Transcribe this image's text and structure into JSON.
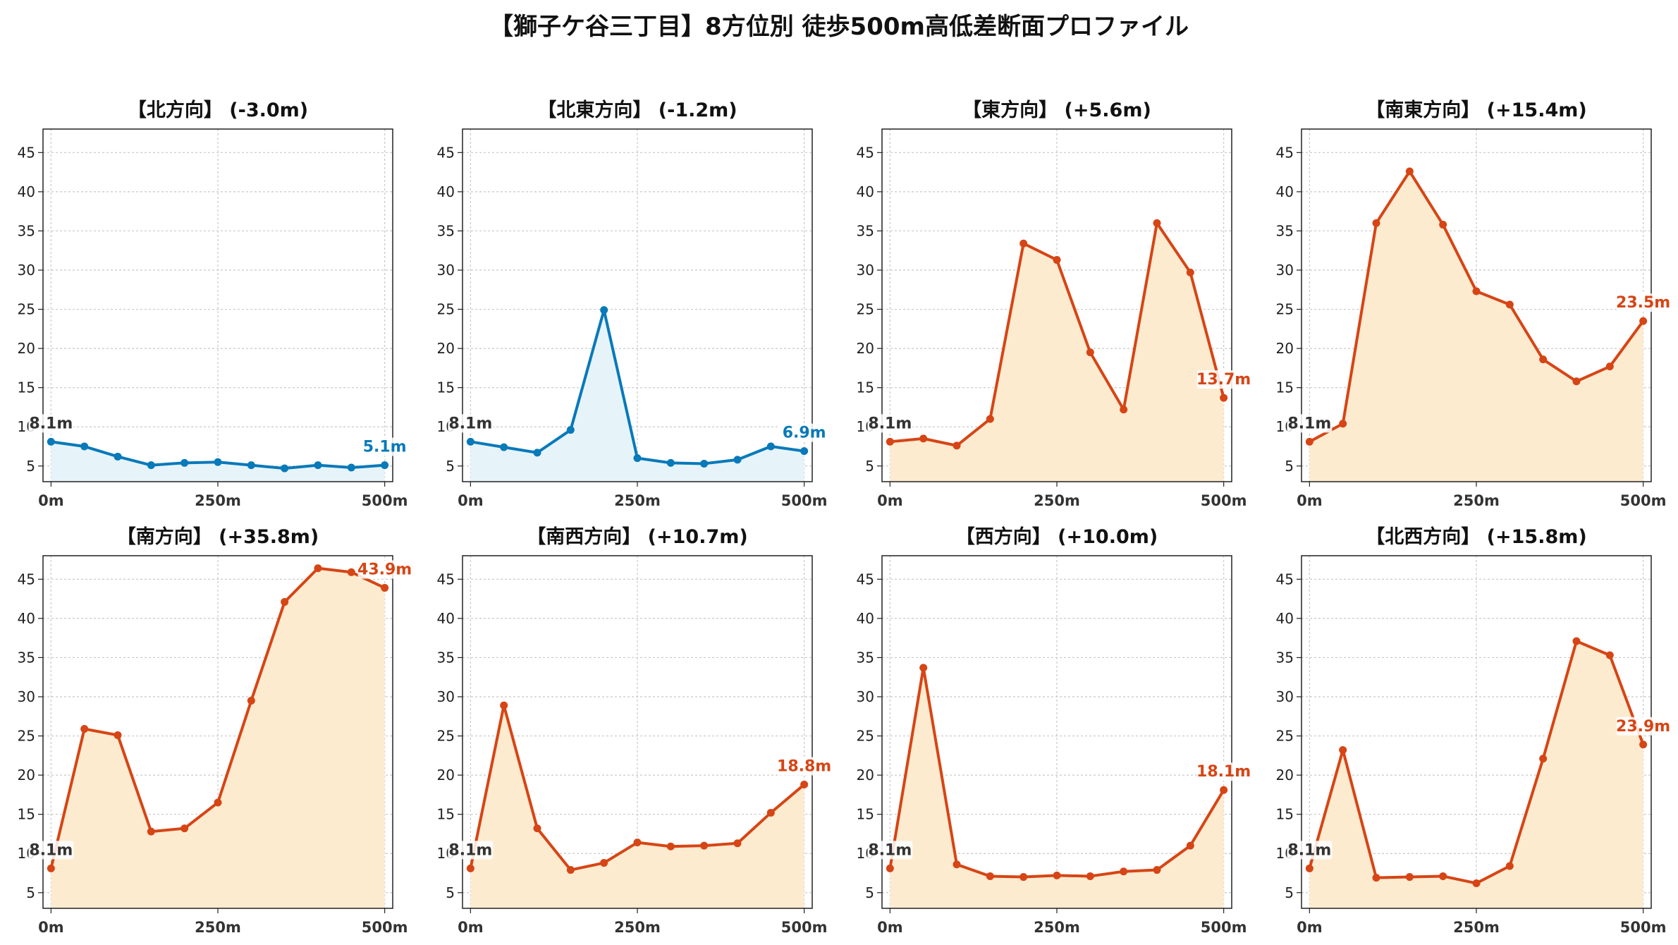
{
  "figure": {
    "title": "【獅子ケ谷三丁目】8方位別 徒歩500m高低差断面プロファイル"
  },
  "colors": {
    "gain": "#D64515",
    "loss": "#0879B9",
    "gain_fill": "#FDEBD0",
    "loss_fill": "#E6F4FA",
    "start_label": "#333333"
  },
  "chart_data": [
    {
      "type": "area",
      "title": "【北方向】 (-3.0m)",
      "xlabel": "",
      "ylabel": "",
      "trend": "loss",
      "x": [
        0,
        50,
        100,
        150,
        200,
        250,
        300,
        350,
        400,
        450,
        500
      ],
      "y": [
        8.1,
        7.5,
        6.2,
        5.1,
        5.4,
        5.5,
        5.1,
        4.7,
        5.1,
        4.8,
        5.1
      ],
      "start_label": "8.1m",
      "end_label": "5.1m",
      "xticks": [
        "0m",
        "250m",
        "500m"
      ],
      "yticks": [
        5,
        10,
        15,
        20,
        25,
        30,
        35,
        40,
        45
      ],
      "ylim": [
        3,
        48
      ],
      "xlim": [
        -12,
        512
      ],
      "grid": true
    },
    {
      "type": "area",
      "title": "【北東方向】 (-1.2m)",
      "xlabel": "",
      "ylabel": "",
      "trend": "loss",
      "x": [
        0,
        50,
        100,
        150,
        200,
        250,
        300,
        350,
        400,
        450,
        500
      ],
      "y": [
        8.1,
        7.4,
        6.7,
        9.6,
        24.9,
        6.0,
        5.4,
        5.3,
        5.8,
        7.5,
        6.9
      ],
      "start_label": "8.1m",
      "end_label": "6.9m",
      "xticks": [
        "0m",
        "250m",
        "500m"
      ],
      "yticks": [
        5,
        10,
        15,
        20,
        25,
        30,
        35,
        40,
        45
      ],
      "ylim": [
        3,
        48
      ],
      "xlim": [
        -12,
        512
      ],
      "grid": true
    },
    {
      "type": "area",
      "title": "【東方向】 (+5.6m)",
      "xlabel": "",
      "ylabel": "",
      "trend": "gain",
      "x": [
        0,
        50,
        100,
        150,
        200,
        250,
        300,
        350,
        400,
        450,
        500
      ],
      "y": [
        8.1,
        8.5,
        7.6,
        11.0,
        33.4,
        31.3,
        19.5,
        12.2,
        36.0,
        29.7,
        13.7
      ],
      "start_label": "8.1m",
      "end_label": "13.7m",
      "xticks": [
        "0m",
        "250m",
        "500m"
      ],
      "yticks": [
        5,
        10,
        15,
        20,
        25,
        30,
        35,
        40,
        45
      ],
      "ylim": [
        3,
        48
      ],
      "xlim": [
        -12,
        512
      ],
      "grid": true
    },
    {
      "type": "area",
      "title": "【南東方向】 (+15.4m)",
      "xlabel": "",
      "ylabel": "",
      "trend": "gain",
      "x": [
        0,
        50,
        100,
        150,
        200,
        250,
        300,
        350,
        400,
        450,
        500
      ],
      "y": [
        8.1,
        10.4,
        36.0,
        42.6,
        35.8,
        27.3,
        25.6,
        18.6,
        15.8,
        17.7,
        23.5
      ],
      "start_label": "8.1m",
      "end_label": "23.5m",
      "xticks": [
        "0m",
        "250m",
        "500m"
      ],
      "yticks": [
        5,
        10,
        15,
        20,
        25,
        30,
        35,
        40,
        45
      ],
      "ylim": [
        3,
        48
      ],
      "xlim": [
        -12,
        512
      ],
      "grid": true
    },
    {
      "type": "area",
      "title": "【南方向】 (+35.8m)",
      "xlabel": "",
      "ylabel": "",
      "trend": "gain",
      "x": [
        0,
        50,
        100,
        150,
        200,
        250,
        300,
        350,
        400,
        450,
        500
      ],
      "y": [
        8.1,
        25.9,
        25.1,
        12.8,
        13.2,
        16.5,
        29.5,
        42.1,
        46.4,
        45.9,
        43.9
      ],
      "start_label": "8.1m",
      "end_label": "43.9m",
      "xticks": [
        "0m",
        "250m",
        "500m"
      ],
      "yticks": [
        5,
        10,
        15,
        20,
        25,
        30,
        35,
        40,
        45
      ],
      "ylim": [
        3,
        48
      ],
      "xlim": [
        -12,
        512
      ],
      "grid": true
    },
    {
      "type": "area",
      "title": "【南西方向】 (+10.7m)",
      "xlabel": "",
      "ylabel": "",
      "trend": "gain",
      "x": [
        0,
        50,
        100,
        150,
        200,
        250,
        300,
        350,
        400,
        450,
        500
      ],
      "y": [
        8.1,
        28.9,
        13.2,
        7.9,
        8.8,
        11.4,
        10.9,
        11.0,
        11.3,
        15.2,
        18.8
      ],
      "start_label": "8.1m",
      "end_label": "18.8m",
      "xticks": [
        "0m",
        "250m",
        "500m"
      ],
      "yticks": [
        5,
        10,
        15,
        20,
        25,
        30,
        35,
        40,
        45
      ],
      "ylim": [
        3,
        48
      ],
      "xlim": [
        -12,
        512
      ],
      "grid": true
    },
    {
      "type": "area",
      "title": "【西方向】 (+10.0m)",
      "xlabel": "",
      "ylabel": "",
      "trend": "gain",
      "x": [
        0,
        50,
        100,
        150,
        200,
        250,
        300,
        350,
        400,
        450,
        500
      ],
      "y": [
        8.1,
        33.7,
        8.6,
        7.1,
        7.0,
        7.2,
        7.1,
        7.7,
        7.9,
        11.0,
        18.1
      ],
      "start_label": "8.1m",
      "end_label": "18.1m",
      "xticks": [
        "0m",
        "250m",
        "500m"
      ],
      "yticks": [
        5,
        10,
        15,
        20,
        25,
        30,
        35,
        40,
        45
      ],
      "ylim": [
        3,
        48
      ],
      "xlim": [
        -12,
        512
      ],
      "grid": true
    },
    {
      "type": "area",
      "title": "【北西方向】 (+15.8m)",
      "xlabel": "",
      "ylabel": "",
      "trend": "gain",
      "x": [
        0,
        50,
        100,
        150,
        200,
        250,
        300,
        350,
        400,
        450,
        500
      ],
      "y": [
        8.1,
        23.2,
        6.9,
        7.0,
        7.1,
        6.2,
        8.4,
        22.1,
        37.1,
        35.3,
        23.9
      ],
      "start_label": "8.1m",
      "end_label": "23.9m",
      "xticks": [
        "0m",
        "250m",
        "500m"
      ],
      "yticks": [
        5,
        10,
        15,
        20,
        25,
        30,
        35,
        40,
        45
      ],
      "ylim": [
        3,
        48
      ],
      "xlim": [
        -12,
        512
      ],
      "grid": true
    }
  ]
}
